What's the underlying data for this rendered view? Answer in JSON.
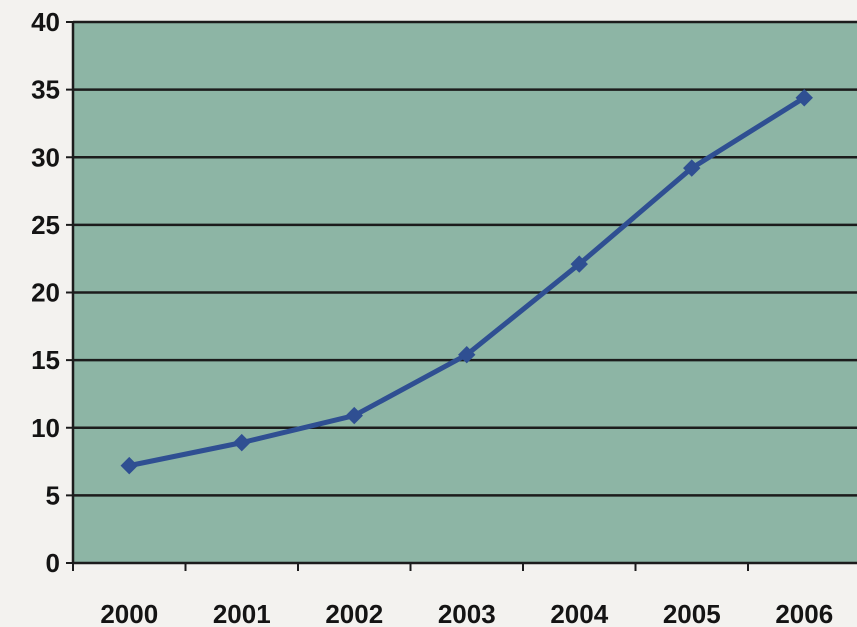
{
  "chart_data": {
    "type": "line",
    "title": "",
    "xlabel": "",
    "ylabel": "",
    "categories": [
      "2000",
      "2001",
      "2002",
      "2003",
      "2004",
      "2005",
      "2006"
    ],
    "series": [
      {
        "values": [
          7.2,
          8.9,
          10.9,
          15.4,
          22.1,
          29.2,
          34.4
        ]
      }
    ],
    "ylim": [
      0,
      40
    ],
    "yticks": [
      "0",
      "5",
      "10",
      "15",
      "20",
      "25",
      "30",
      "35",
      "40"
    ],
    "grid": true,
    "legend": "none",
    "colors": {
      "plot_background": "#8db5a5",
      "line": "#2f4f92",
      "gridline": "#1c1c1c",
      "axis": "#1c1c1c",
      "page_background": "#f3f2ef"
    }
  }
}
